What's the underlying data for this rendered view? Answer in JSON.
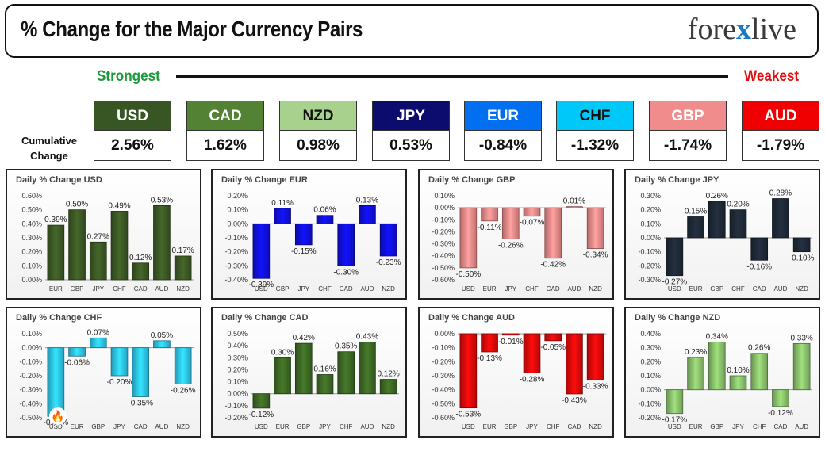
{
  "header": {
    "title": "% Change for the Major Currency Pairs",
    "logo_left": "fore",
    "logo_x": "x",
    "logo_right": "live"
  },
  "ranking": {
    "strong_label": "Strongest",
    "weak_label": "Weakest",
    "cumulative_label_1": "Cumulative",
    "cumulative_label_2": "Change"
  },
  "tiles": [
    {
      "name": "USD",
      "value": "2.56%",
      "bg": "#375623",
      "fg": "#ffffff"
    },
    {
      "name": "CAD",
      "value": "1.62%",
      "bg": "#548235",
      "fg": "#ffffff"
    },
    {
      "name": "NZD",
      "value": "0.98%",
      "bg": "#a9d18e",
      "fg": "#111111"
    },
    {
      "name": "JPY",
      "value": "0.53%",
      "bg": "#0c0c6e",
      "fg": "#ffffff"
    },
    {
      "name": "EUR",
      "value": "-0.84%",
      "bg": "#0070f0",
      "fg": "#ffffff"
    },
    {
      "name": "CHF",
      "value": "-1.32%",
      "bg": "#00c8f8",
      "fg": "#111111"
    },
    {
      "name": "GBP",
      "value": "-1.74%",
      "bg": "#f08c8c",
      "fg": "#ffffff"
    },
    {
      "name": "AUD",
      "value": "-1.79%",
      "bg": "#f00000",
      "fg": "#ffffff"
    }
  ],
  "chart_data": [
    {
      "type": "bar",
      "title": "Daily % Change USD",
      "categories": [
        "EUR",
        "GBP",
        "JPY",
        "CHF",
        "CAD",
        "AUD",
        "NZD"
      ],
      "values": [
        0.39,
        0.5,
        0.27,
        0.49,
        0.12,
        0.53,
        0.17
      ],
      "ylim": [
        0.0,
        0.6
      ],
      "ytick_step": 0.1,
      "color": "#3d5a25"
    },
    {
      "type": "bar",
      "title": "Daily % Change EUR",
      "categories": [
        "USD",
        "GBP",
        "JPY",
        "CHF",
        "CAD",
        "AUD",
        "NZD"
      ],
      "values": [
        -0.39,
        0.11,
        -0.15,
        0.06,
        -0.3,
        0.13,
        -0.23
      ],
      "ylim": [
        -0.4,
        0.2
      ],
      "ytick_step": 0.1,
      "color": "#1010e0"
    },
    {
      "type": "bar",
      "title": "Daily % Change GBP",
      "categories": [
        "USD",
        "EUR",
        "JPY",
        "CHF",
        "CAD",
        "AUD",
        "NZD"
      ],
      "values": [
        -0.5,
        -0.11,
        -0.26,
        -0.07,
        -0.42,
        0.01,
        -0.34
      ],
      "ylim": [
        -0.6,
        0.1
      ],
      "ytick_step": 0.1,
      "color": "#f08c8c"
    },
    {
      "type": "bar",
      "title": "Daily % Change JPY",
      "categories": [
        "USD",
        "EUR",
        "GBP",
        "CHF",
        "CAD",
        "AUD",
        "NZD"
      ],
      "values": [
        -0.27,
        0.15,
        0.26,
        0.2,
        -0.16,
        0.28,
        -0.1
      ],
      "ylim": [
        -0.3,
        0.3
      ],
      "ytick_step": 0.1,
      "color": "#1f2a38"
    },
    {
      "type": "bar",
      "title": "Daily % Change CHF",
      "categories": [
        "USD",
        "EUR",
        "GBP",
        "JPY",
        "CAD",
        "AUD",
        "NZD"
      ],
      "values": [
        -0.49,
        -0.06,
        0.07,
        -0.2,
        -0.35,
        0.05,
        -0.26
      ],
      "ylim": [
        -0.5,
        0.1
      ],
      "ytick_step": 0.1,
      "color": "#2ec8f0"
    },
    {
      "type": "bar",
      "title": "Daily % Change CAD",
      "categories": [
        "USD",
        "EUR",
        "GBP",
        "JPY",
        "CHF",
        "AUD",
        "NZD"
      ],
      "values": [
        -0.12,
        0.3,
        0.42,
        0.16,
        0.35,
        0.43,
        0.12
      ],
      "ylim": [
        -0.2,
        0.5
      ],
      "ytick_step": 0.1,
      "color": "#3e6a25"
    },
    {
      "type": "bar",
      "title": "Daily % Change AUD",
      "categories": [
        "USD",
        "EUR",
        "GBP",
        "JPY",
        "CHF",
        "CAD",
        "NZD"
      ],
      "values": [
        -0.53,
        -0.13,
        -0.01,
        -0.28,
        -0.05,
        -0.43,
        -0.33
      ],
      "ylim": [
        -0.6,
        0.0
      ],
      "ytick_step": 0.1,
      "color": "#e00a0a"
    },
    {
      "type": "bar",
      "title": "Daily % Change NZD",
      "categories": [
        "USD",
        "EUR",
        "GBP",
        "JPY",
        "CHF",
        "CAD",
        "AUD"
      ],
      "values": [
        -0.17,
        0.23,
        0.34,
        0.1,
        0.26,
        -0.12,
        0.33
      ],
      "ylim": [
        -0.2,
        0.4
      ],
      "ytick_step": 0.1,
      "color": "#8cc46e"
    }
  ],
  "panel_layout_note": ""
}
